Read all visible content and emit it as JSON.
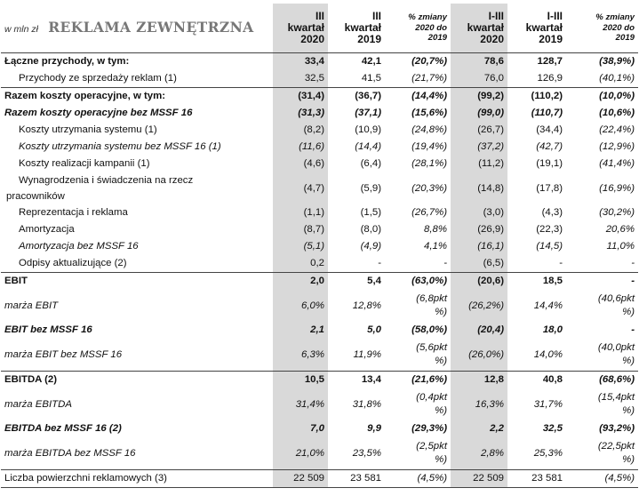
{
  "header": {
    "unit": "w mln zł",
    "title": "REKLAMA ZEWNĘTRZNA",
    "columns": [
      {
        "line1": "III",
        "line2": "kwartał",
        "line3": "2020"
      },
      {
        "line1": "III",
        "line2": "kwartał",
        "line3": "2019"
      },
      {
        "line1": "% zmiany",
        "line2": "2020 do",
        "line3": "2019"
      },
      {
        "line1": "I-III",
        "line2": "kwartał",
        "line3": "2020"
      },
      {
        "line1": "I-III",
        "line2": "kwartał",
        "line3": "2019"
      },
      {
        "line1": "% zmiany",
        "line2": "2020 do",
        "line3": "2019"
      }
    ]
  },
  "rows": [
    {
      "label": "Łączne przychody, w tym:",
      "v": [
        "33,4",
        "42,1",
        "(20,7%)",
        "78,6",
        "128,7",
        "(38,9%)"
      ]
    },
    {
      "label": "Przychody ze sprzedaży reklam (1)",
      "v": [
        "32,5",
        "41,5",
        "(21,7%)",
        "76,0",
        "126,9",
        "(40,1%)"
      ]
    },
    {
      "label": "Razem koszty operacyjne, w tym:",
      "v": [
        "(31,4)",
        "(36,7)",
        "(14,4%)",
        "(99,2)",
        "(110,2)",
        "(10,0%)"
      ]
    },
    {
      "label": "Razem koszty operacyjne bez MSSF 16",
      "v": [
        "(31,3)",
        "(37,1)",
        "(15,6%)",
        "(99,0)",
        "(110,7)",
        "(10,6%)"
      ]
    },
    {
      "label": "Koszty utrzymania systemu (1)",
      "v": [
        "(8,2)",
        "(10,9)",
        "(24,8%)",
        "(26,7)",
        "(34,4)",
        "(22,4%)"
      ]
    },
    {
      "label": "Koszty utrzymania systemu bez MSSF 16 (1)",
      "v": [
        "(11,6)",
        "(14,4)",
        "(19,4%)",
        "(37,2)",
        "(42,7)",
        "(12,9%)"
      ]
    },
    {
      "label": "Koszty realizacji kampanii (1)",
      "v": [
        "(4,6)",
        "(6,4)",
        "(28,1%)",
        "(11,2)",
        "(19,1)",
        "(41,4%)"
      ]
    },
    {
      "label1": "Wynagrodzenia i świadczenia na rzecz",
      "label2": "pracowników",
      "v": [
        "(4,7)",
        "(5,9)",
        "(20,3%)",
        "(14,8)",
        "(17,8)",
        "(16,9%)"
      ]
    },
    {
      "label": "Reprezentacja i reklama",
      "v": [
        "(1,1)",
        "(1,5)",
        "(26,7%)",
        "(3,0)",
        "(4,3)",
        "(30,2%)"
      ]
    },
    {
      "label": "Amortyzacja",
      "v": [
        "(8,7)",
        "(8,0)",
        "8,8%",
        "(26,9)",
        "(22,3)",
        "20,6%"
      ]
    },
    {
      "label": "Amortyzacja bez MSSF 16",
      "v": [
        "(5,1)",
        "(4,9)",
        "4,1%",
        "(16,1)",
        "(14,5)",
        "11,0%"
      ]
    },
    {
      "label": "Odpisy aktualizujące (2)",
      "v": [
        "0,2",
        "-",
        "-",
        "(6,5)",
        "-",
        "-"
      ]
    },
    {
      "label": "EBIT",
      "v": [
        "2,0",
        "5,4",
        "(63,0%)",
        "(20,6)",
        "18,5",
        "-"
      ]
    },
    {
      "label": "marża EBIT",
      "v": [
        "6,0%",
        "12,8%",
        "",
        "(26,2%)",
        "14,4%",
        ""
      ],
      "pct1a": "(6,8pkt",
      "pct1b": "%)",
      "pct2a": "(40,6pkt",
      "pct2b": "%)"
    },
    {
      "label": "EBIT bez MSSF 16",
      "v": [
        "2,1",
        "5,0",
        "(58,0%)",
        "(20,4)",
        "18,0",
        "-"
      ]
    },
    {
      "label": "marża EBIT bez MSSF 16",
      "v": [
        "6,3%",
        "11,9%",
        "",
        "(26,0%)",
        "14,0%",
        ""
      ],
      "pct1a": "(5,6pkt",
      "pct1b": "%)",
      "pct2a": "(40,0pkt",
      "pct2b": "%)"
    },
    {
      "label": "EBITDA (2)",
      "v": [
        "10,5",
        "13,4",
        "(21,6%)",
        "12,8",
        "40,8",
        "(68,6%)"
      ]
    },
    {
      "label": "marża EBITDA",
      "v": [
        "31,4%",
        "31,8%",
        "",
        "16,3%",
        "31,7%",
        ""
      ],
      "pct1a": "(0,4pkt",
      "pct1b": "%)",
      "pct2a": "(15,4pkt",
      "pct2b": "%)"
    },
    {
      "label": "EBITDA bez MSSF 16 (2)",
      "v": [
        "7,0",
        "9,9",
        "(29,3%)",
        "2,2",
        "32,5",
        "(93,2%)"
      ]
    },
    {
      "label": "marża EBITDA bez MSSF 16",
      "v": [
        "21,0%",
        "23,5%",
        "",
        "2,8%",
        "25,3%",
        ""
      ],
      "pct1a": "(2,5pkt",
      "pct1b": "%)",
      "pct2a": "(22,5pkt",
      "pct2b": "%)"
    },
    {
      "label": "Liczba powierzchni reklamowych (3)",
      "v": [
        "22 509",
        "23 581",
        "(4,5%)",
        "22 509",
        "23 581",
        "(4,5%)"
      ]
    }
  ]
}
